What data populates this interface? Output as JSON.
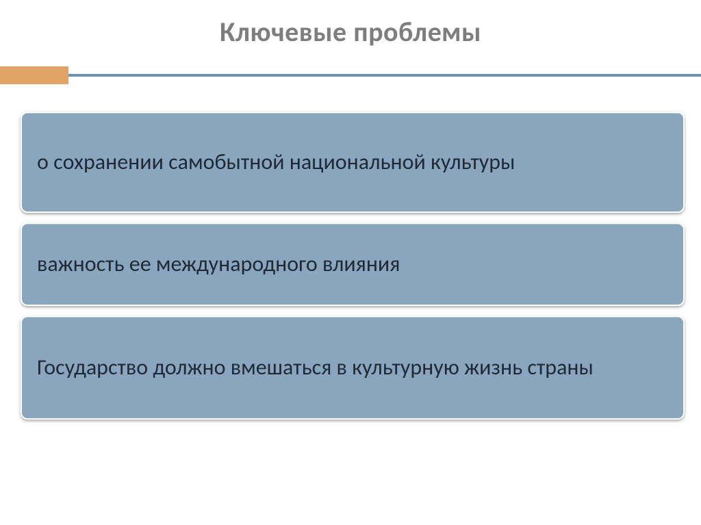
{
  "slide": {
    "title": "Ключевые проблемы",
    "title_color": "#7e7e7e",
    "title_fontsize": 40,
    "rule": {
      "accent_color": "#e1a367",
      "accent_width": 100,
      "accent_height": 26,
      "line_color": "#6f93b5",
      "line_height": 4
    },
    "panels": {
      "background_color": "#8aa6bf",
      "text_color": "#1f2a36",
      "fontsize": 32,
      "border_radius": 10,
      "gap": 14,
      "padding_x": 22,
      "items": [
        {
          "text": "о сохранении самобытной национальной культуры",
          "height": 148
        },
        {
          "text": "важность ее международного влияния",
          "height": 122
        },
        {
          "text": "Государство должно вмешаться в культурную жизнь страны",
          "height": 152
        }
      ]
    }
  }
}
